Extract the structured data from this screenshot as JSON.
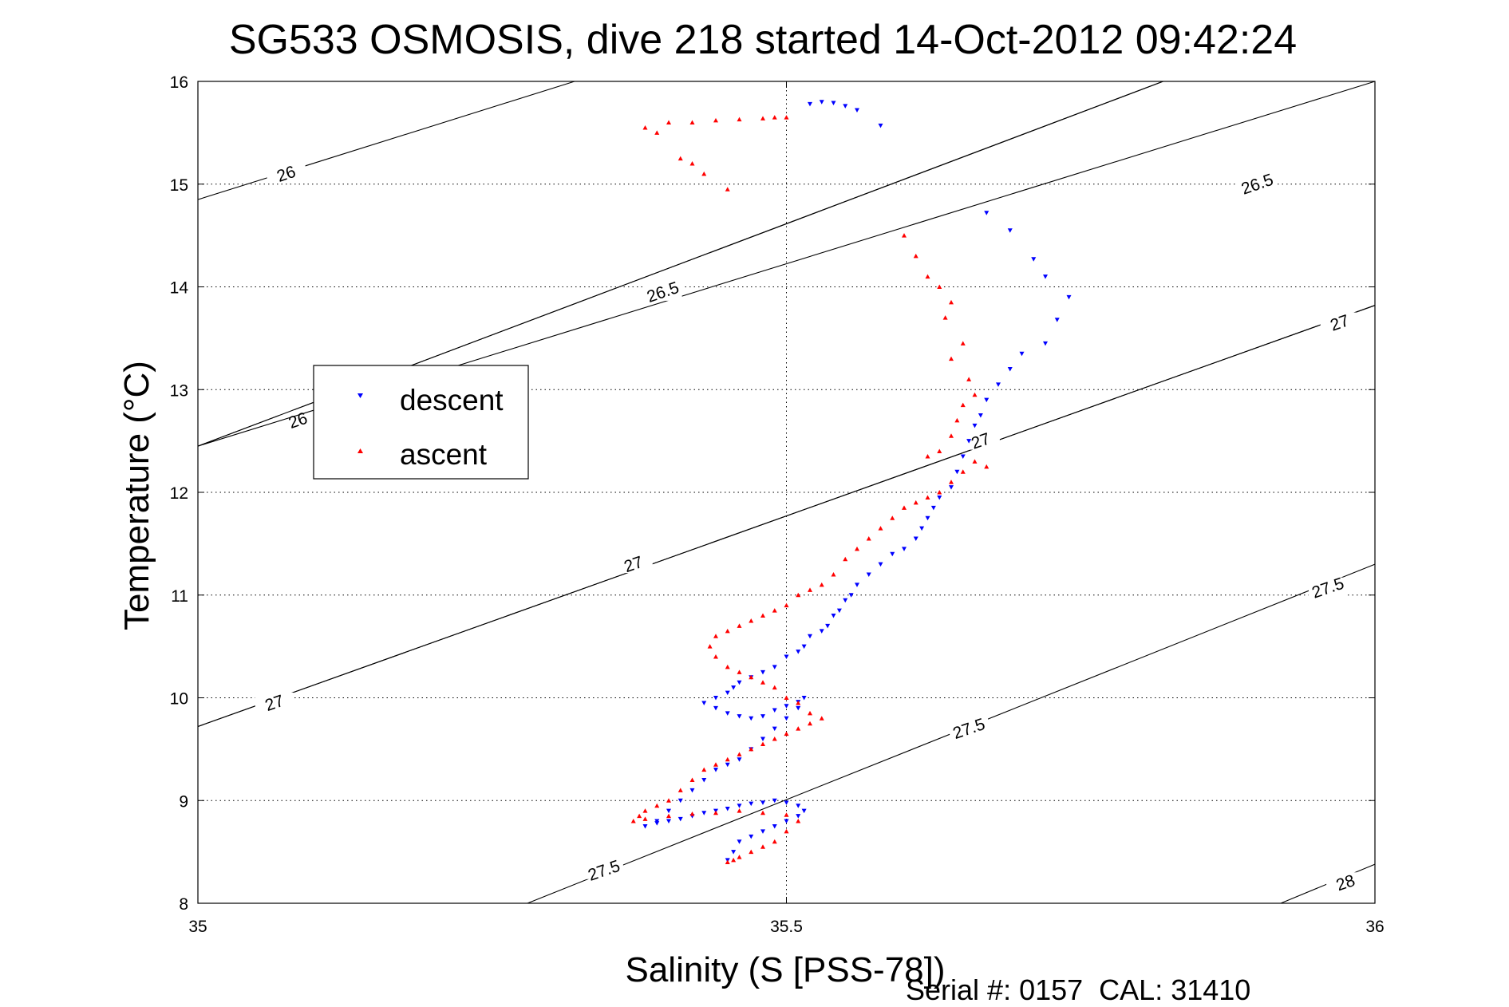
{
  "chart_data": {
    "type": "scatter",
    "title": "SG533 OSMOSIS, dive 218 started 14-Oct-2012 09:42:24",
    "xlabel": "Salinity (S [PSS-78])",
    "ylabel": "Temperature (°C)",
    "xlim": [
      35,
      36
    ],
    "ylim": [
      8,
      16
    ],
    "xticks": [
      "35",
      "35.5",
      "36"
    ],
    "yticks": [
      "8",
      "9",
      "10",
      "11",
      "12",
      "13",
      "14",
      "15",
      "16"
    ],
    "grid": true,
    "legend_position": "left",
    "footer": "Serial #: 0157  CAL: 31410",
    "density_contours": [
      {
        "label": "26",
        "segments": [
          [
            [
              35.0,
              14.85
            ],
            [
              35.32,
              16.0
            ]
          ],
          [
            [
              35.0,
              12.45
            ],
            [
              35.82,
              16.0
            ]
          ]
        ],
        "label_points": [
          [
            35.075,
            15.1
          ],
          [
            35.085,
            12.7
          ]
        ]
      },
      {
        "label": "26.5",
        "segments": [
          [
            [
              35.0,
              12.45
            ],
            [
              35.82,
              16.0
            ]
          ],
          [
            [
              35.0,
              12.45
            ],
            [
              36.0,
              16.0
            ]
          ]
        ],
        "label_points": [
          [
            35.395,
            13.95
          ],
          [
            35.9,
            15.0
          ]
        ]
      },
      {
        "label": "27",
        "segments": [
          [
            [
              35.0,
              9.72
            ],
            [
              36.0,
              13.82
            ]
          ],
          [
            [
              35.0,
              9.72
            ],
            [
              36.0,
              13.82
            ]
          ]
        ],
        "label_points": [
          [
            35.065,
            9.95
          ],
          [
            35.37,
            11.3
          ],
          [
            35.665,
            12.5
          ],
          [
            35.97,
            13.65
          ]
        ]
      },
      {
        "label": "27.5",
        "segments": [
          [
            [
              35.28,
              8.0
            ],
            [
              36.0,
              11.3
            ]
          ]
        ],
        "label_points": [
          [
            35.345,
            8.32
          ],
          [
            35.655,
            9.7
          ],
          [
            35.96,
            11.07
          ]
        ]
      },
      {
        "label": "28",
        "segments": [
          [
            [
              35.92,
              8.0
            ],
            [
              36.0,
              8.38
            ]
          ]
        ],
        "label_points": [
          [
            35.975,
            8.2
          ]
        ]
      }
    ],
    "series": [
      {
        "name": "descent",
        "color": "#0000ff",
        "marker": "triangle-down",
        "x": [
          35.52,
          35.53,
          35.54,
          35.55,
          35.56,
          35.58,
          35.67,
          35.69,
          35.71,
          35.72,
          35.74,
          35.73,
          35.72,
          35.7,
          35.69,
          35.68,
          35.67,
          35.665,
          35.66,
          35.655,
          35.65,
          35.645,
          35.64,
          35.63,
          35.625,
          35.62,
          35.615,
          35.61,
          35.6,
          35.59,
          35.58,
          35.57,
          35.56,
          35.555,
          35.55,
          35.545,
          35.54,
          35.535,
          35.53,
          35.52,
          35.515,
          35.51,
          35.5,
          35.49,
          35.48,
          35.47,
          35.46,
          35.455,
          35.45,
          35.44,
          35.43,
          35.44,
          35.45,
          35.46,
          35.47,
          35.48,
          35.49,
          35.5,
          35.51,
          35.515,
          35.51,
          35.5,
          35.49,
          35.48,
          35.47,
          35.46,
          35.45,
          35.44,
          35.43,
          35.42,
          35.41,
          35.4,
          35.39,
          35.38,
          35.39,
          35.4,
          35.41,
          35.42,
          35.43,
          35.44,
          35.45,
          35.46,
          35.47,
          35.48,
          35.49,
          35.5,
          35.51,
          35.515,
          35.51,
          35.5,
          35.49,
          35.48,
          35.47,
          35.46,
          35.455,
          35.45
        ],
        "y": [
          15.78,
          15.8,
          15.79,
          15.76,
          15.72,
          15.57,
          14.72,
          14.55,
          14.27,
          14.1,
          13.9,
          13.68,
          13.45,
          13.35,
          13.2,
          13.05,
          12.9,
          12.75,
          12.65,
          12.5,
          12.35,
          12.2,
          12.05,
          11.95,
          11.85,
          11.75,
          11.65,
          11.55,
          11.45,
          11.4,
          11.3,
          11.2,
          11.1,
          11.0,
          10.95,
          10.85,
          10.8,
          10.7,
          10.65,
          10.6,
          10.5,
          10.45,
          10.4,
          10.3,
          10.25,
          10.2,
          10.15,
          10.1,
          10.05,
          10.0,
          9.95,
          9.9,
          9.85,
          9.82,
          9.8,
          9.82,
          9.88,
          9.92,
          9.96,
          10.0,
          9.9,
          9.8,
          9.7,
          9.6,
          9.5,
          9.4,
          9.35,
          9.3,
          9.2,
          9.1,
          9.0,
          8.9,
          8.8,
          8.75,
          8.78,
          8.8,
          8.82,
          8.85,
          8.88,
          8.9,
          8.92,
          8.95,
          8.97,
          8.98,
          9.0,
          8.98,
          8.95,
          8.9,
          8.85,
          8.8,
          8.75,
          8.7,
          8.65,
          8.6,
          8.5,
          8.42
        ]
      },
      {
        "name": "ascent",
        "color": "#ff0000",
        "marker": "triangle-up",
        "x": [
          35.38,
          35.39,
          35.4,
          35.42,
          35.44,
          35.46,
          35.48,
          35.49,
          35.5,
          35.41,
          35.42,
          35.43,
          35.45,
          35.6,
          35.61,
          35.62,
          35.63,
          35.64,
          35.635,
          35.65,
          35.64,
          35.655,
          35.66,
          35.65,
          35.645,
          35.64,
          35.63,
          35.62,
          35.66,
          35.67,
          35.65,
          35.64,
          35.63,
          35.62,
          35.61,
          35.6,
          35.59,
          35.58,
          35.57,
          35.56,
          35.55,
          35.54,
          35.53,
          35.52,
          35.51,
          35.5,
          35.49,
          35.48,
          35.47,
          35.46,
          35.45,
          35.44,
          35.435,
          35.44,
          35.45,
          35.46,
          35.47,
          35.48,
          35.49,
          35.5,
          35.51,
          35.52,
          35.53,
          35.52,
          35.51,
          35.5,
          35.49,
          35.48,
          35.47,
          35.46,
          35.45,
          35.44,
          35.43,
          35.42,
          35.41,
          35.4,
          35.39,
          35.38,
          35.375,
          35.37,
          35.38,
          35.4,
          35.42,
          35.44,
          35.46,
          35.48,
          35.5,
          35.51,
          35.5,
          35.49,
          35.48,
          35.47,
          35.46,
          35.455,
          35.45
        ],
        "y": [
          15.55,
          15.5,
          15.6,
          15.6,
          15.62,
          15.63,
          15.64,
          15.65,
          15.65,
          15.25,
          15.2,
          15.1,
          14.95,
          14.5,
          14.3,
          14.1,
          14.0,
          13.85,
          13.7,
          13.45,
          13.3,
          13.1,
          12.95,
          12.85,
          12.7,
          12.55,
          12.4,
          12.35,
          12.3,
          12.25,
          12.2,
          12.1,
          12.0,
          11.95,
          11.9,
          11.85,
          11.75,
          11.65,
          11.55,
          11.45,
          11.35,
          11.2,
          11.1,
          11.05,
          11.0,
          10.9,
          10.85,
          10.8,
          10.75,
          10.7,
          10.65,
          10.6,
          10.5,
          10.4,
          10.3,
          10.25,
          10.2,
          10.15,
          10.1,
          10.0,
          9.95,
          9.85,
          9.8,
          9.75,
          9.7,
          9.65,
          9.6,
          9.55,
          9.5,
          9.45,
          9.4,
          9.35,
          9.3,
          9.2,
          9.1,
          9.0,
          8.95,
          8.9,
          8.85,
          8.8,
          8.82,
          8.85,
          8.87,
          8.88,
          8.9,
          8.88,
          8.86,
          8.8,
          8.7,
          8.6,
          8.55,
          8.5,
          8.45,
          8.42,
          8.4
        ]
      }
    ]
  }
}
